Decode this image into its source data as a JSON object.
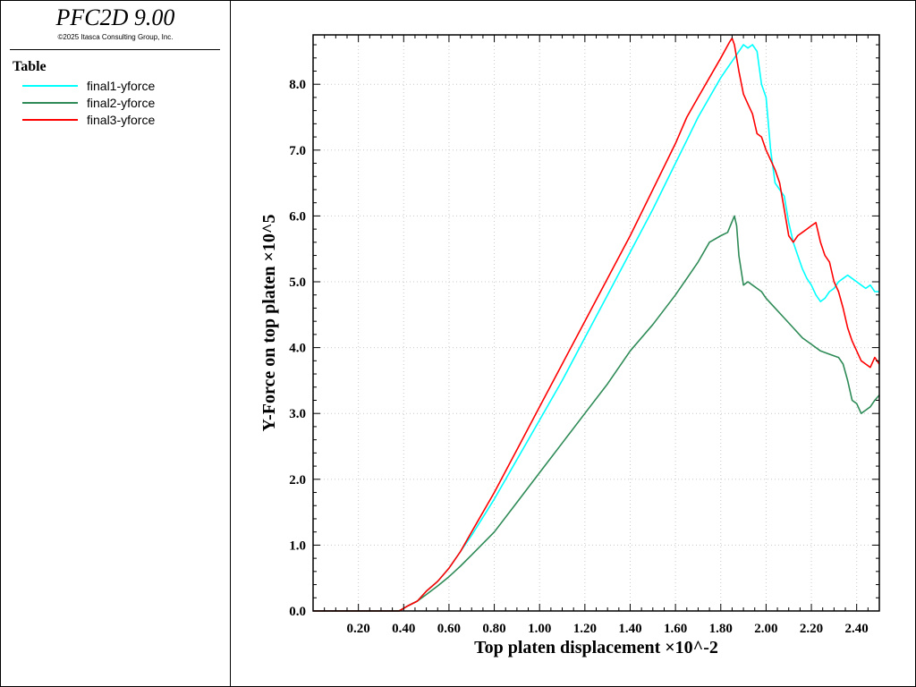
{
  "app": {
    "title": "PFC2D 9.00",
    "copyright": "©2025 Itasca Consulting Group, Inc."
  },
  "legend": {
    "heading": "Table",
    "items": [
      {
        "label": "final1-yforce",
        "color": "#00ffff"
      },
      {
        "label": "final2-yforce",
        "color": "#2e8b57"
      },
      {
        "label": "final3-yforce",
        "color": "#ff0000"
      }
    ]
  },
  "chart_data": {
    "type": "line",
    "title": "",
    "xlabel": "Top platen displacement ×10^-2",
    "ylabel": "Y-Force on top platen ×10^5",
    "xlim": [
      0.0,
      2.5
    ],
    "ylim": [
      0.0,
      8.75
    ],
    "x_ticks": [
      0.2,
      0.4,
      0.6,
      0.8,
      1.0,
      1.2,
      1.4,
      1.6,
      1.8,
      2.0,
      2.2,
      2.4
    ],
    "x_tick_labels": [
      "0.20",
      "0.40",
      "0.60",
      "0.80",
      "1.00",
      "1.20",
      "1.40",
      "1.60",
      "1.80",
      "2.00",
      "2.20",
      "2.40"
    ],
    "y_ticks": [
      0,
      1,
      2,
      3,
      4,
      5,
      6,
      7,
      8
    ],
    "y_tick_labels": [
      "0.0",
      "1.0",
      "2.0",
      "3.0",
      "4.0",
      "5.0",
      "6.0",
      "7.0",
      "8.0"
    ],
    "grid": true,
    "series": [
      {
        "name": "final1-yforce",
        "color": "#00ffff",
        "x": [
          0.0,
          0.38,
          0.42,
          0.46,
          0.5,
          0.55,
          0.6,
          0.65,
          0.7,
          0.8,
          0.9,
          1.0,
          1.1,
          1.2,
          1.3,
          1.4,
          1.5,
          1.6,
          1.65,
          1.7,
          1.75,
          1.8,
          1.84,
          1.86,
          1.88,
          1.9,
          1.92,
          1.94,
          1.96,
          1.98,
          2.0,
          2.02,
          2.04,
          2.06,
          2.08,
          2.1,
          2.12,
          2.14,
          2.16,
          2.18,
          2.2,
          2.22,
          2.24,
          2.26,
          2.28,
          2.3,
          2.32,
          2.34,
          2.36,
          2.38,
          2.4,
          2.42,
          2.44,
          2.46,
          2.48,
          2.5
        ],
        "y": [
          0.0,
          0.0,
          0.08,
          0.15,
          0.3,
          0.45,
          0.65,
          0.9,
          1.15,
          1.7,
          2.3,
          2.9,
          3.5,
          4.15,
          4.8,
          5.45,
          6.1,
          6.8,
          7.15,
          7.5,
          7.8,
          8.1,
          8.3,
          8.4,
          8.5,
          8.6,
          8.55,
          8.6,
          8.5,
          8.0,
          7.8,
          7.0,
          6.5,
          6.4,
          6.3,
          5.9,
          5.6,
          5.4,
          5.2,
          5.05,
          4.95,
          4.8,
          4.7,
          4.75,
          4.85,
          4.9,
          5.0,
          5.05,
          5.1,
          5.05,
          5.0,
          4.95,
          4.9,
          4.95,
          4.85,
          4.85
        ]
      },
      {
        "name": "final2-yforce",
        "color": "#2e8b57",
        "x": [
          0.0,
          0.38,
          0.42,
          0.46,
          0.5,
          0.55,
          0.6,
          0.65,
          0.7,
          0.8,
          0.9,
          1.0,
          1.1,
          1.2,
          1.3,
          1.4,
          1.5,
          1.6,
          1.65,
          1.7,
          1.75,
          1.8,
          1.83,
          1.86,
          1.87,
          1.88,
          1.9,
          1.92,
          1.94,
          1.96,
          1.98,
          2.0,
          2.04,
          2.08,
          2.12,
          2.16,
          2.2,
          2.24,
          2.28,
          2.32,
          2.34,
          2.36,
          2.38,
          2.4,
          2.42,
          2.44,
          2.46,
          2.48,
          2.5
        ],
        "y": [
          0.0,
          0.0,
          0.08,
          0.15,
          0.25,
          0.38,
          0.52,
          0.68,
          0.85,
          1.2,
          1.65,
          2.1,
          2.55,
          3.0,
          3.45,
          3.95,
          4.35,
          4.8,
          5.05,
          5.3,
          5.6,
          5.7,
          5.75,
          6.0,
          5.85,
          5.4,
          4.95,
          5.0,
          4.95,
          4.9,
          4.85,
          4.75,
          4.6,
          4.45,
          4.3,
          4.15,
          4.05,
          3.95,
          3.9,
          3.85,
          3.75,
          3.5,
          3.2,
          3.15,
          3.0,
          3.05,
          3.1,
          3.2,
          3.28
        ]
      },
      {
        "name": "final3-yforce",
        "color": "#ff0000",
        "x": [
          0.0,
          0.38,
          0.42,
          0.46,
          0.5,
          0.55,
          0.6,
          0.65,
          0.7,
          0.8,
          0.9,
          1.0,
          1.1,
          1.2,
          1.3,
          1.4,
          1.5,
          1.6,
          1.65,
          1.7,
          1.75,
          1.8,
          1.84,
          1.85,
          1.86,
          1.88,
          1.9,
          1.92,
          1.94,
          1.96,
          1.98,
          2.0,
          2.02,
          2.04,
          2.06,
          2.08,
          2.1,
          2.12,
          2.14,
          2.16,
          2.18,
          2.2,
          2.22,
          2.24,
          2.26,
          2.28,
          2.3,
          2.32,
          2.34,
          2.36,
          2.38,
          2.4,
          2.42,
          2.44,
          2.46,
          2.48,
          2.5
        ],
        "y": [
          0.0,
          0.0,
          0.08,
          0.15,
          0.3,
          0.45,
          0.65,
          0.9,
          1.2,
          1.8,
          2.45,
          3.1,
          3.75,
          4.4,
          5.05,
          5.7,
          6.4,
          7.1,
          7.5,
          7.8,
          8.1,
          8.4,
          8.65,
          8.7,
          8.6,
          8.2,
          7.85,
          7.7,
          7.55,
          7.25,
          7.2,
          7.0,
          6.85,
          6.7,
          6.5,
          6.1,
          5.7,
          5.6,
          5.7,
          5.75,
          5.8,
          5.85,
          5.9,
          5.6,
          5.4,
          5.3,
          5.0,
          4.85,
          4.6,
          4.3,
          4.1,
          3.95,
          3.8,
          3.75,
          3.7,
          3.85,
          3.75
        ]
      }
    ]
  }
}
